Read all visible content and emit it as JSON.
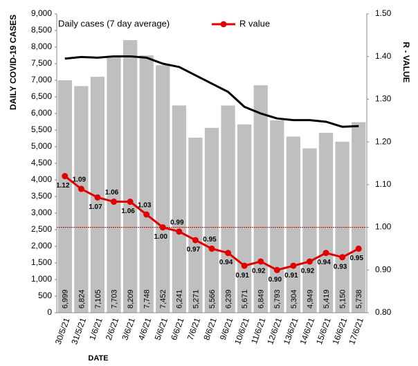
{
  "chart_data": {
    "type": "bar_line",
    "x_label": "DATE",
    "y_label": "DAILY COVID-19 CASES",
    "y2_label": "R - VALUE",
    "categories": [
      "30/5/21",
      "31/5/21",
      "1/6/21",
      "2/6/21",
      "3/6/21",
      "4/6/21",
      "5/6/21",
      "6/6/21",
      "7/6/21",
      "8/6/21",
      "9/6/21",
      "10/6/21",
      "11/6/21",
      "12/6/21",
      "13/6/21",
      "14/6/21",
      "15/6/21",
      "16/6/21",
      "17/6/21"
    ],
    "series": [
      {
        "name": "Daily cases (7 day average)",
        "kind": "bar",
        "color": "#bfbfbf",
        "values": [
          6999,
          6824,
          7105,
          7703,
          8209,
          7748,
          7452,
          6241,
          5271,
          5566,
          6239,
          5671,
          6849,
          5793,
          5304,
          4949,
          5419,
          5150,
          5738
        ],
        "value_labels": [
          "6,999",
          "6,824",
          "7,105",
          "7,703",
          "8,209",
          "7,748",
          "7,452",
          "6,241",
          "5,271",
          "5,566",
          "6,239",
          "5,671",
          "6,849",
          "5,793",
          "5,304",
          "4,949",
          "5,419",
          "5,150",
          "5,738"
        ]
      },
      {
        "kind": "line",
        "color": "#000000",
        "values": [
          7650,
          7700,
          7680,
          7720,
          7720,
          7680,
          7500,
          7400,
          7150,
          6900,
          6650,
          6200,
          6000,
          5850,
          5800,
          5800,
          5750,
          5600,
          5620
        ]
      },
      {
        "name": "R value",
        "kind": "line",
        "axis": "y2",
        "color": "#e00000",
        "values": [
          1.12,
          1.09,
          1.07,
          1.06,
          1.06,
          1.03,
          1.0,
          0.99,
          0.97,
          0.95,
          0.94,
          0.91,
          0.92,
          0.9,
          0.91,
          0.92,
          0.94,
          0.93,
          0.95
        ],
        "value_labels": [
          "1.12",
          "1.09",
          "1.07",
          "1.06",
          "1.06",
          "1.03",
          "1.00",
          "0.99",
          "0.97",
          "0.95",
          "0.94",
          "0.91",
          "0.92",
          "0.90",
          "0.91",
          "0.92",
          "0.94",
          "0.93",
          "0.95"
        ]
      }
    ],
    "reference_line": {
      "value": 1,
      "axis": "y2",
      "color": "#c00000"
    },
    "ylim": [
      0,
      9000
    ],
    "yticks": [
      0,
      500,
      {
        "value": 1000,
        "label": "1,000"
      },
      {
        "value": 1500,
        "label": "1,500"
      },
      {
        "value": 2000,
        "label": "2,000"
      },
      {
        "value": 2500,
        "label": "2,500"
      },
      {
        "value": 3000,
        "label": "3,000"
      },
      {
        "value": 3500,
        "label": "3,500"
      },
      {
        "value": 4000,
        "label": "4,000"
      },
      {
        "value": 4500,
        "label": "4,500"
      },
      {
        "value": 5000,
        "label": "5,000"
      },
      {
        "value": 5500,
        "label": "5,500"
      },
      {
        "value": 6000,
        "label": "6,000"
      },
      {
        "value": 6500,
        "label": "6,500"
      },
      {
        "value": 7000,
        "label": "7,000"
      },
      {
        "value": 7500,
        "label": "7,500"
      },
      {
        "value": 8000,
        "label": "8,000"
      },
      {
        "value": 8500,
        "label": "8,500"
      },
      {
        "value": 9000,
        "label": "9,000"
      }
    ],
    "y2lim": [
      0.8,
      1.5
    ],
    "y2ticks": [
      {
        "value": 0.8,
        "label": "0.80"
      },
      {
        "value": 0.9,
        "label": "0.90"
      },
      {
        "value": 1,
        "label": "1.00"
      },
      {
        "value": 1.1,
        "label": "1.10"
      },
      {
        "value": 1.2,
        "label": "1.20"
      },
      {
        "value": 1.3,
        "label": "1.30"
      },
      {
        "value": 1.4,
        "label": "1.40"
      },
      {
        "value": 1.5,
        "label": "1.50"
      }
    ]
  }
}
